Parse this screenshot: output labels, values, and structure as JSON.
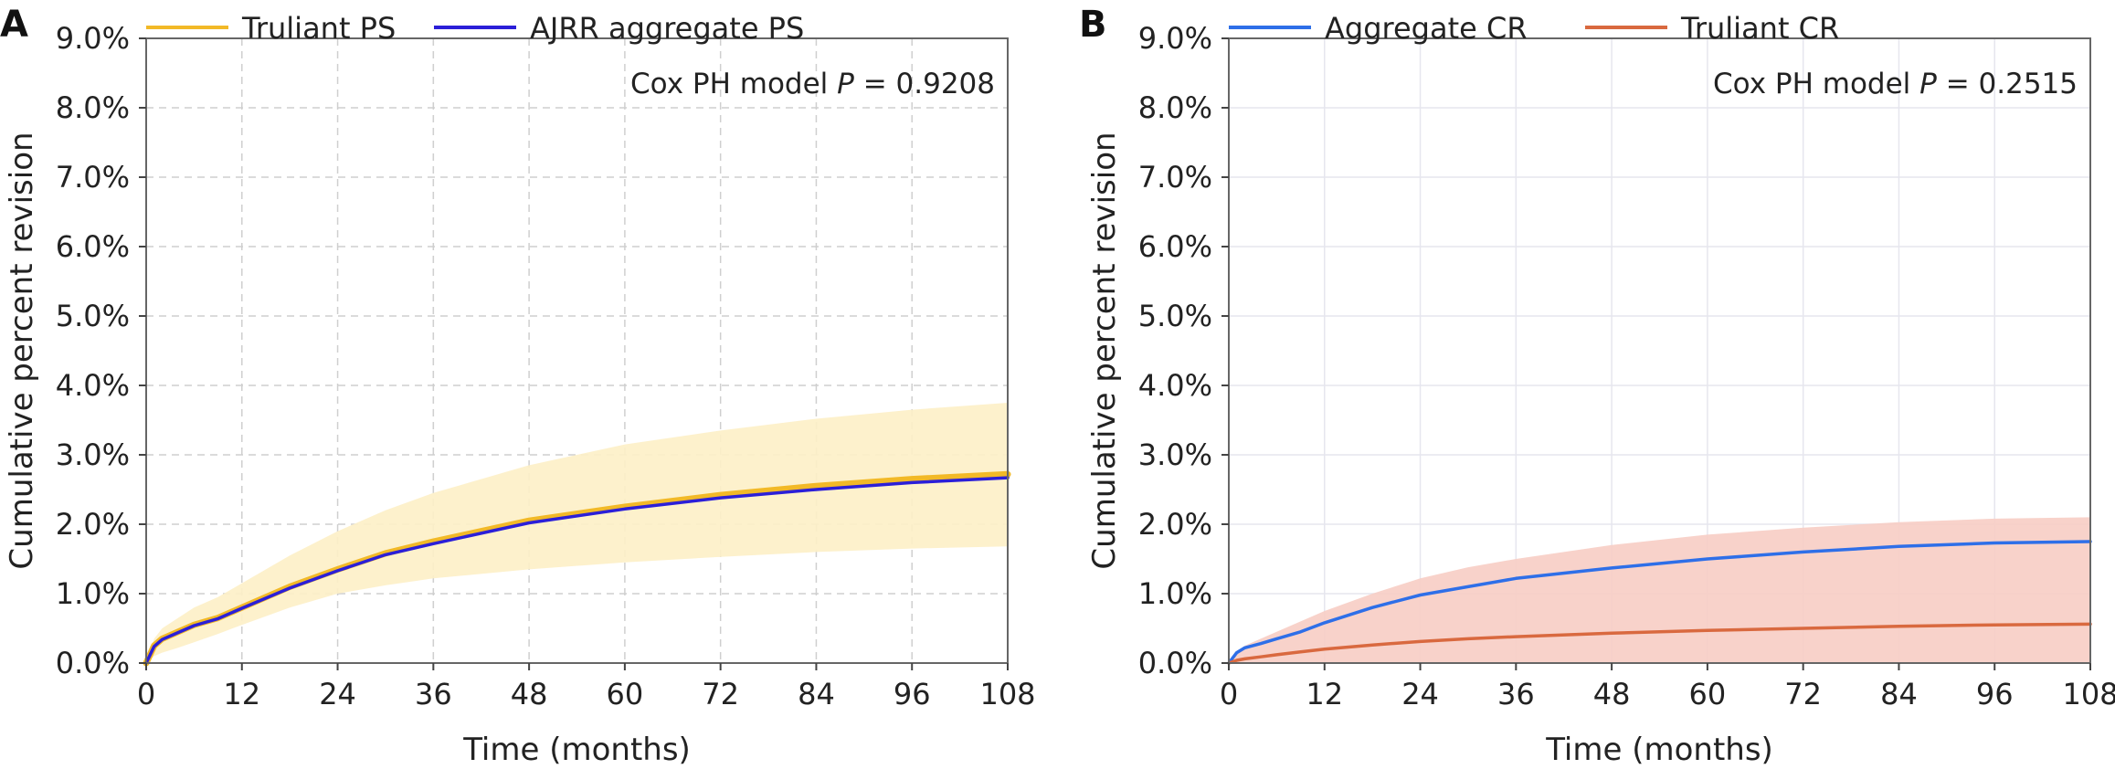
{
  "chart_data": [
    {
      "panel": "A",
      "type": "line",
      "xlabel": "Time (months)",
      "ylabel": "Cumulative percent revision",
      "annotation": {
        "text": "Cox PH model ",
        "italic": "P",
        "value": " = 0.9208"
      },
      "xlim": [
        0,
        108
      ],
      "ylim": [
        0,
        9
      ],
      "x_ticks": [
        0,
        12,
        24,
        36,
        48,
        60,
        72,
        84,
        96,
        108
      ],
      "y_ticks": [
        0,
        1,
        2,
        3,
        4,
        5,
        6,
        7,
        8,
        9
      ],
      "y_tick_labels": [
        "0.0%",
        "1.0%",
        "2.0%",
        "3.0%",
        "4.0%",
        "5.0%",
        "6.0%",
        "7.0%",
        "8.0%",
        "9.0%"
      ],
      "grid": "dashed",
      "legend_position": "top",
      "x": [
        0,
        1,
        2,
        4,
        6,
        9,
        12,
        18,
        24,
        30,
        36,
        48,
        60,
        72,
        84,
        96,
        108
      ],
      "series": [
        {
          "name": "Truliant PS",
          "color": "#f2b927",
          "values": [
            0.0,
            0.25,
            0.35,
            0.45,
            0.55,
            0.65,
            0.8,
            1.1,
            1.35,
            1.58,
            1.75,
            2.05,
            2.25,
            2.42,
            2.55,
            2.65,
            2.72
          ],
          "ci_lower": [
            0.0,
            0.1,
            0.15,
            0.22,
            0.3,
            0.42,
            0.55,
            0.8,
            1.0,
            1.12,
            1.22,
            1.35,
            1.45,
            1.53,
            1.6,
            1.65,
            1.68
          ],
          "ci_upper": [
            0.0,
            0.35,
            0.5,
            0.65,
            0.8,
            0.95,
            1.15,
            1.55,
            1.9,
            2.2,
            2.45,
            2.85,
            3.15,
            3.35,
            3.52,
            3.65,
            3.75
          ],
          "ci_color": "#fdf0c6"
        },
        {
          "name": "AJRR aggregate PS",
          "color": "#2b1fd8",
          "values": [
            0.0,
            0.24,
            0.34,
            0.44,
            0.54,
            0.64,
            0.79,
            1.08,
            1.33,
            1.56,
            1.72,
            2.02,
            2.22,
            2.38,
            2.5,
            2.6,
            2.67
          ]
        }
      ]
    },
    {
      "panel": "B",
      "type": "line",
      "xlabel": "Time (months)",
      "ylabel": "Cumulative percent revision",
      "annotation": {
        "text": "Cox PH model ",
        "italic": "P",
        "value": " = 0.2515"
      },
      "xlim": [
        0,
        108
      ],
      "ylim": [
        0,
        9
      ],
      "x_ticks": [
        0,
        12,
        24,
        36,
        48,
        60,
        72,
        84,
        96,
        108
      ],
      "y_ticks": [
        0,
        1,
        2,
        3,
        4,
        5,
        6,
        7,
        8,
        9
      ],
      "y_tick_labels": [
        "0.0%",
        "1.0%",
        "2.0%",
        "3.0%",
        "4.0%",
        "5.0%",
        "6.0%",
        "7.0%",
        "8.0%",
        "9.0%"
      ],
      "grid": "solid",
      "legend_position": "top",
      "x": [
        0,
        1,
        2,
        4,
        6,
        9,
        12,
        18,
        24,
        30,
        36,
        48,
        60,
        72,
        84,
        96,
        108
      ],
      "series": [
        {
          "name": "Aggregate CR",
          "color": "#2e6fe8",
          "values": [
            0.0,
            0.15,
            0.22,
            0.28,
            0.35,
            0.45,
            0.58,
            0.8,
            0.98,
            1.1,
            1.22,
            1.37,
            1.5,
            1.6,
            1.68,
            1.73,
            1.75
          ]
        },
        {
          "name": "Truliant CR",
          "color": "#d9693f",
          "values": [
            0.0,
            0.04,
            0.06,
            0.09,
            0.12,
            0.16,
            0.2,
            0.26,
            0.31,
            0.35,
            0.38,
            0.43,
            0.47,
            0.5,
            0.53,
            0.55,
            0.56
          ],
          "ci_lower": [
            0.0,
            0.0,
            0.0,
            0.0,
            0.0,
            0.0,
            0.0,
            0.0,
            0.0,
            0.0,
            0.0,
            0.0,
            0.0,
            0.0,
            0.0,
            0.0,
            0.0
          ],
          "ci_upper": [
            0.0,
            0.15,
            0.25,
            0.35,
            0.45,
            0.6,
            0.75,
            1.0,
            1.22,
            1.38,
            1.5,
            1.7,
            1.85,
            1.95,
            2.03,
            2.08,
            2.1
          ],
          "ci_color": "#f7cdc4"
        }
      ]
    }
  ]
}
